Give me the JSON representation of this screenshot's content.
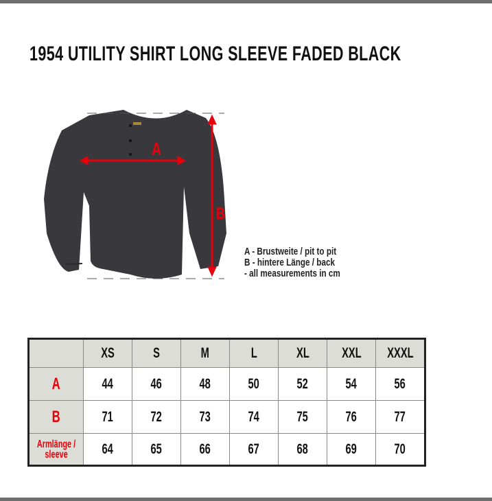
{
  "title": "1954 UTILITY SHIRT LONG SLEEVE FADED BLACK",
  "diagram": {
    "label_a": "A",
    "label_b": "B",
    "shirt_color": "#38383d",
    "arrow_color": "#e8000b"
  },
  "legend": [
    "A - Brustweite / pit to pit",
    "B - hintere Länge / back",
    "- all measurements in cm"
  ],
  "table": {
    "sizes": [
      "XS",
      "S",
      "M",
      "L",
      "XL",
      "XXL",
      "XXXL"
    ],
    "rows": [
      {
        "label": "A",
        "values": [
          "44",
          "46",
          "48",
          "50",
          "52",
          "54",
          "56"
        ]
      },
      {
        "label": "B",
        "values": [
          "71",
          "72",
          "73",
          "74",
          "75",
          "76",
          "77"
        ]
      },
      {
        "label": "Armlänge / sleeve",
        "values": [
          "64",
          "65",
          "66",
          "67",
          "68",
          "69",
          "70"
        ]
      }
    ]
  }
}
